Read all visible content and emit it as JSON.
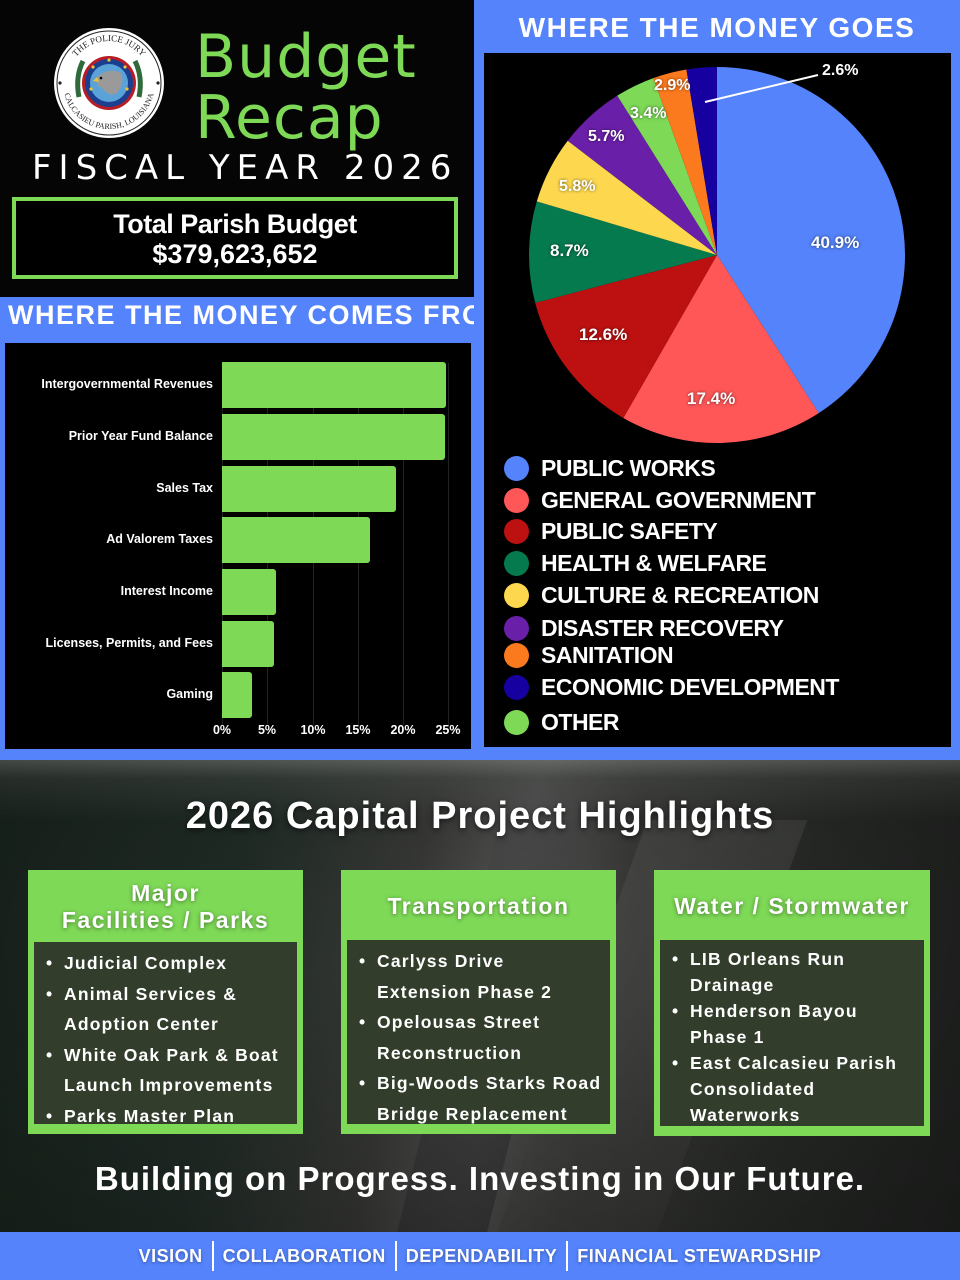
{
  "header": {
    "seal_top_text": "THE POLICE JURY",
    "seal_bottom_text": "CALCASIEU PARISH, LOUISIANA",
    "title_line1": "Budget",
    "title_line2": "Recap",
    "subtitle": "FISCAL YEAR 2026",
    "total_label": "Total Parish Budget",
    "total_value": "$379,623,652"
  },
  "colors": {
    "accent_green": "#7ed957",
    "accent_blue": "#5483fb",
    "background": "#000000"
  },
  "revenue": {
    "title": "WHERE THE MONEY COMES FROM"
  },
  "spending": {
    "title": "WHERE THE MONEY GOES"
  },
  "chart_data": [
    {
      "type": "bar",
      "orientation": "horizontal",
      "title": "WHERE THE MONEY COMES FROM",
      "categories": [
        "Intergovernmental Revenues",
        "Prior Year Fund Balance",
        "Sales Tax",
        "Ad Valorem Taxes",
        "Interest Income",
        "Licenses, Permits, and Fees",
        "Gaming"
      ],
      "values": [
        24.8,
        24.7,
        19.3,
        16.4,
        6.0,
        5.8,
        3.3
      ],
      "unit": "%",
      "xlabel": "",
      "ylabel": "",
      "xlim": [
        0,
        25
      ],
      "x_ticks": [
        "0%",
        "5%",
        "10%",
        "15%",
        "20%",
        "25%"
      ],
      "grid": true,
      "bar_color": "#7ed957"
    },
    {
      "type": "pie",
      "title": "WHERE THE MONEY GOES",
      "categories": [
        "PUBLIC WORKS",
        "GENERAL GOVERNMENT",
        "PUBLIC SAFETY",
        "HEALTH & WELFARE",
        "CULTURE & RECREATION",
        "DISASTER RECOVERY",
        "OTHER",
        "SANITATION",
        "ECONOMIC DEVELOPMENT"
      ],
      "values": [
        40.9,
        17.4,
        12.6,
        8.7,
        5.8,
        5.7,
        3.4,
        2.9,
        2.6
      ],
      "labels": [
        "40.9%",
        "17.4%",
        "12.6%",
        "8.7%",
        "5.8%",
        "5.7%",
        "3.4%",
        "2.9%",
        "2.6%"
      ],
      "colors": [
        "#5483fb",
        "#ff5757",
        "#bd1111",
        "#057a4f",
        "#fdd84e",
        "#6a1fa9",
        "#7ed957",
        "#fc7a1e",
        "#1600a0"
      ],
      "legend": [
        "PUBLIC WORKS",
        "GENERAL GOVERNMENT",
        "PUBLIC SAFETY",
        "HEALTH & WELFARE",
        "CULTURE & RECREATION",
        "DISASTER RECOVERY",
        "SANITATION",
        "ECONOMIC DEVELOPMENT",
        "OTHER"
      ],
      "legend_colors": [
        "#5483fb",
        "#ff5757",
        "#bd1111",
        "#057a4f",
        "#fdd84e",
        "#6a1fa9",
        "#fc7a1e",
        "#1600a0",
        "#7ed957"
      ],
      "legend_position": "bottom",
      "start_angle": "12 o'clock, clockwise"
    }
  ],
  "capital": {
    "title": "2026 Capital Project Highlights",
    "cards": [
      {
        "heading_line1": "Major",
        "heading_line2": "Facilities / Parks",
        "items": [
          "Judicial Complex",
          "Animal Services & Adoption Center",
          "White Oak Park & Boat Launch Improvements",
          "Parks Master Plan"
        ]
      },
      {
        "heading_line1": "Transportation",
        "heading_line2": "",
        "items": [
          "Carlyss Drive Extension Phase 2",
          "Opelousas Street Reconstruction",
          "Big-Woods Starks Road Bridge Replacement"
        ]
      },
      {
        "heading_line1": "Water / Stormwater",
        "heading_line2": "",
        "items": [
          "LIB Orleans Run Drainage",
          "Henderson Bayou Phase 1",
          "East Calcasieu Parish Consolidated Waterworks"
        ]
      }
    ]
  },
  "tagline": "Building on Progress. Investing in Our Future.",
  "footer": {
    "values": [
      "VISION",
      "COLLABORATION",
      "DEPENDABILITY",
      "FINANCIAL STEWARDSHIP"
    ]
  }
}
